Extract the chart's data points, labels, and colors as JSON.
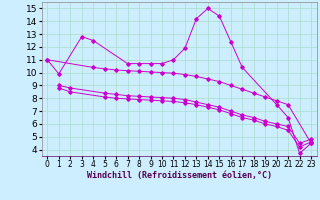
{
  "background_color": "#cceeff",
  "grid_color": "#aaddcc",
  "line_color": "#cc00cc",
  "xlabel": "Windchill (Refroidissement éolien,°C)",
  "xlim": [
    -0.5,
    23.5
  ],
  "ylim": [
    3.5,
    15.5
  ],
  "yticks": [
    4,
    5,
    6,
    7,
    8,
    9,
    10,
    11,
    12,
    13,
    14,
    15
  ],
  "xticks": [
    0,
    1,
    2,
    3,
    4,
    5,
    6,
    7,
    8,
    9,
    10,
    11,
    12,
    13,
    14,
    15,
    16,
    17,
    18,
    19,
    20,
    21,
    22,
    23
  ],
  "line1_x": [
    0,
    1,
    3,
    4,
    7,
    8,
    9,
    10,
    11,
    12,
    13,
    14,
    15,
    16,
    17,
    20,
    21,
    22,
    23
  ],
  "line1_y": [
    11.0,
    9.9,
    12.8,
    12.5,
    10.7,
    10.7,
    10.7,
    10.7,
    11.0,
    11.9,
    14.2,
    15.0,
    14.4,
    12.4,
    10.4,
    7.5,
    6.5,
    3.7,
    4.5
  ],
  "line2_x": [
    0,
    4,
    5,
    6,
    7,
    8,
    9,
    10,
    11,
    12,
    13,
    14,
    15,
    16,
    17,
    18,
    19,
    20,
    21,
    23
  ],
  "line2_y": [
    11.0,
    10.4,
    10.3,
    10.2,
    10.15,
    10.1,
    10.05,
    10.0,
    9.95,
    9.85,
    9.7,
    9.5,
    9.3,
    9.0,
    8.7,
    8.4,
    8.1,
    7.8,
    7.5,
    4.5
  ],
  "line3_x": [
    1,
    2,
    5,
    6,
    7,
    8,
    9,
    10,
    11,
    12,
    13,
    14,
    15,
    16,
    17,
    18,
    19,
    20,
    21,
    22,
    23
  ],
  "line3_y": [
    9.0,
    8.8,
    8.4,
    8.3,
    8.2,
    8.15,
    8.1,
    8.05,
    8.0,
    7.9,
    7.7,
    7.5,
    7.3,
    7.0,
    6.7,
    6.5,
    6.2,
    6.0,
    5.8,
    4.5,
    4.8
  ],
  "line4_x": [
    1,
    2,
    5,
    6,
    7,
    8,
    9,
    10,
    11,
    12,
    13,
    14,
    15,
    16,
    17,
    18,
    19,
    20,
    21,
    22,
    23
  ],
  "line4_y": [
    8.8,
    8.5,
    8.1,
    8.0,
    7.95,
    7.9,
    7.85,
    7.8,
    7.75,
    7.65,
    7.5,
    7.3,
    7.1,
    6.8,
    6.5,
    6.3,
    6.0,
    5.8,
    5.5,
    4.2,
    4.6
  ],
  "font_size_xlabel": 6,
  "font_size_ticks": 6
}
